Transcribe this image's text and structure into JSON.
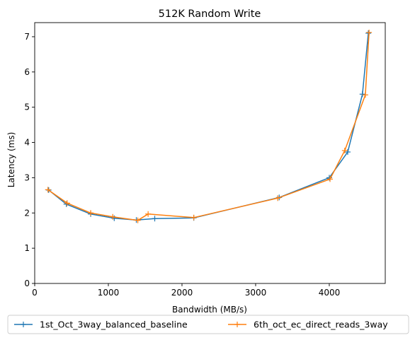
{
  "chart_data": {
    "type": "line",
    "title": "512K  Random Write",
    "xlabel": "Bandwidth (MB/s)",
    "ylabel": "Latency (ms)",
    "xlim": [
      0,
      4760
    ],
    "ylim": [
      0,
      7.4
    ],
    "xticks": [
      0,
      1000,
      2000,
      3000,
      4000
    ],
    "yticks": [
      0,
      1,
      2,
      3,
      4,
      5,
      6,
      7
    ],
    "grid": false,
    "legend": "bottom-center",
    "series": [
      {
        "name": "1st_Oct_3way_balanced_baseline",
        "color": "#1f77b4",
        "x": [
          190,
          430,
          760,
          1080,
          1380,
          1630,
          2160,
          3320,
          4000,
          4250,
          4450,
          4530
        ],
        "y": [
          2.65,
          2.25,
          1.97,
          1.85,
          1.8,
          1.84,
          1.86,
          2.44,
          3.0,
          3.73,
          5.37,
          7.1
        ]
      },
      {
        "name": "6th_oct_ec_direct_reads_3way",
        "color": "#ff7f0e",
        "x": [
          180,
          440,
          760,
          1060,
          1400,
          1540,
          2160,
          3300,
          4010,
          4210,
          4490,
          4540
        ],
        "y": [
          2.66,
          2.28,
          2.0,
          1.89,
          1.79,
          1.97,
          1.87,
          2.42,
          2.96,
          3.77,
          5.35,
          7.12
        ]
      }
    ]
  }
}
